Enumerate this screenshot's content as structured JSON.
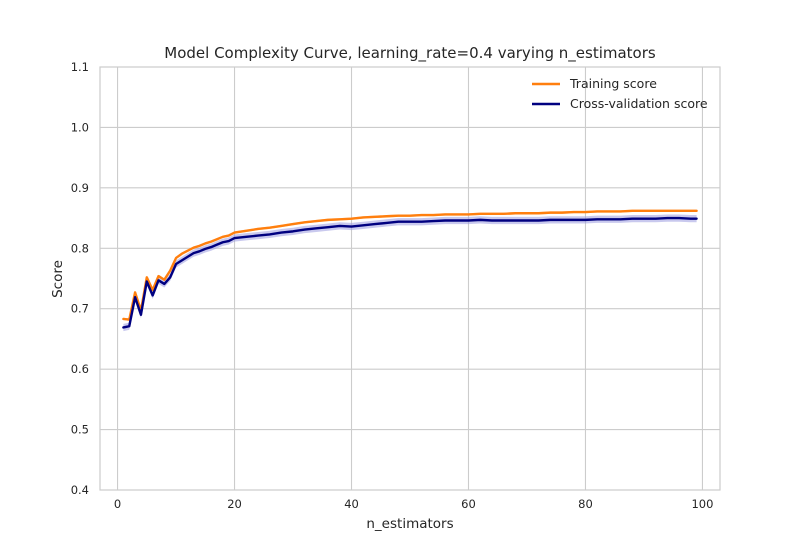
{
  "chart_data": {
    "type": "line",
    "title": "Model Complexity Curve, learning_rate=0.4 varying n_estimators",
    "xlabel": "n_estimators",
    "ylabel": "Score",
    "xlim": [
      -3,
      103
    ],
    "ylim": [
      0.4,
      1.1
    ],
    "xticks": [
      0,
      20,
      40,
      60,
      80,
      100
    ],
    "yticks": [
      0.4,
      0.5,
      0.6,
      0.7,
      0.8,
      0.9,
      1.0,
      1.1
    ],
    "ytick_labels": [
      "0.4",
      "0.5",
      "0.6",
      "0.7",
      "0.8",
      "0.9",
      "1.0",
      "1.1"
    ],
    "grid": true,
    "legend_position": "top-right",
    "series": [
      {
        "name": "Training score",
        "color": "#ff7f0e",
        "band_color": "#ffbb78",
        "x": [
          1,
          2,
          3,
          4,
          5,
          6,
          7,
          8,
          9,
          10,
          11,
          12,
          13,
          14,
          15,
          16,
          17,
          18,
          19,
          20,
          22,
          24,
          26,
          28,
          30,
          32,
          34,
          36,
          38,
          40,
          42,
          44,
          46,
          48,
          50,
          52,
          54,
          56,
          58,
          60,
          62,
          64,
          66,
          68,
          70,
          72,
          74,
          76,
          78,
          80,
          82,
          84,
          86,
          88,
          90,
          92,
          94,
          96,
          98,
          99
        ],
        "y": [
          0.683,
          0.682,
          0.727,
          0.697,
          0.752,
          0.731,
          0.754,
          0.748,
          0.763,
          0.784,
          0.791,
          0.796,
          0.801,
          0.804,
          0.808,
          0.811,
          0.815,
          0.819,
          0.821,
          0.826,
          0.829,
          0.832,
          0.834,
          0.837,
          0.84,
          0.843,
          0.845,
          0.847,
          0.848,
          0.849,
          0.851,
          0.852,
          0.853,
          0.854,
          0.854,
          0.855,
          0.855,
          0.856,
          0.856,
          0.856,
          0.857,
          0.857,
          0.857,
          0.858,
          0.858,
          0.858,
          0.859,
          0.859,
          0.86,
          0.86,
          0.861,
          0.861,
          0.861,
          0.862,
          0.862,
          0.862,
          0.862,
          0.862,
          0.862,
          0.862
        ],
        "band": 0.002
      },
      {
        "name": "Cross-validation score",
        "color": "#000080",
        "band_color": "#9d9de0",
        "x": [
          1,
          2,
          3,
          4,
          5,
          6,
          7,
          8,
          9,
          10,
          11,
          12,
          13,
          14,
          15,
          16,
          17,
          18,
          19,
          20,
          22,
          24,
          26,
          28,
          30,
          32,
          34,
          36,
          38,
          40,
          42,
          44,
          46,
          48,
          50,
          52,
          54,
          56,
          58,
          60,
          62,
          64,
          66,
          68,
          70,
          72,
          74,
          76,
          78,
          80,
          82,
          84,
          86,
          88,
          90,
          92,
          94,
          96,
          98,
          99
        ],
        "y": [
          0.669,
          0.671,
          0.719,
          0.69,
          0.745,
          0.722,
          0.747,
          0.741,
          0.752,
          0.774,
          0.78,
          0.786,
          0.792,
          0.795,
          0.799,
          0.802,
          0.806,
          0.81,
          0.812,
          0.817,
          0.819,
          0.821,
          0.823,
          0.826,
          0.828,
          0.831,
          0.833,
          0.835,
          0.837,
          0.836,
          0.838,
          0.84,
          0.842,
          0.844,
          0.844,
          0.844,
          0.845,
          0.846,
          0.846,
          0.846,
          0.847,
          0.846,
          0.846,
          0.846,
          0.846,
          0.846,
          0.847,
          0.847,
          0.847,
          0.847,
          0.848,
          0.848,
          0.848,
          0.849,
          0.849,
          0.849,
          0.85,
          0.85,
          0.849,
          0.849
        ],
        "band": 0.006
      }
    ]
  }
}
